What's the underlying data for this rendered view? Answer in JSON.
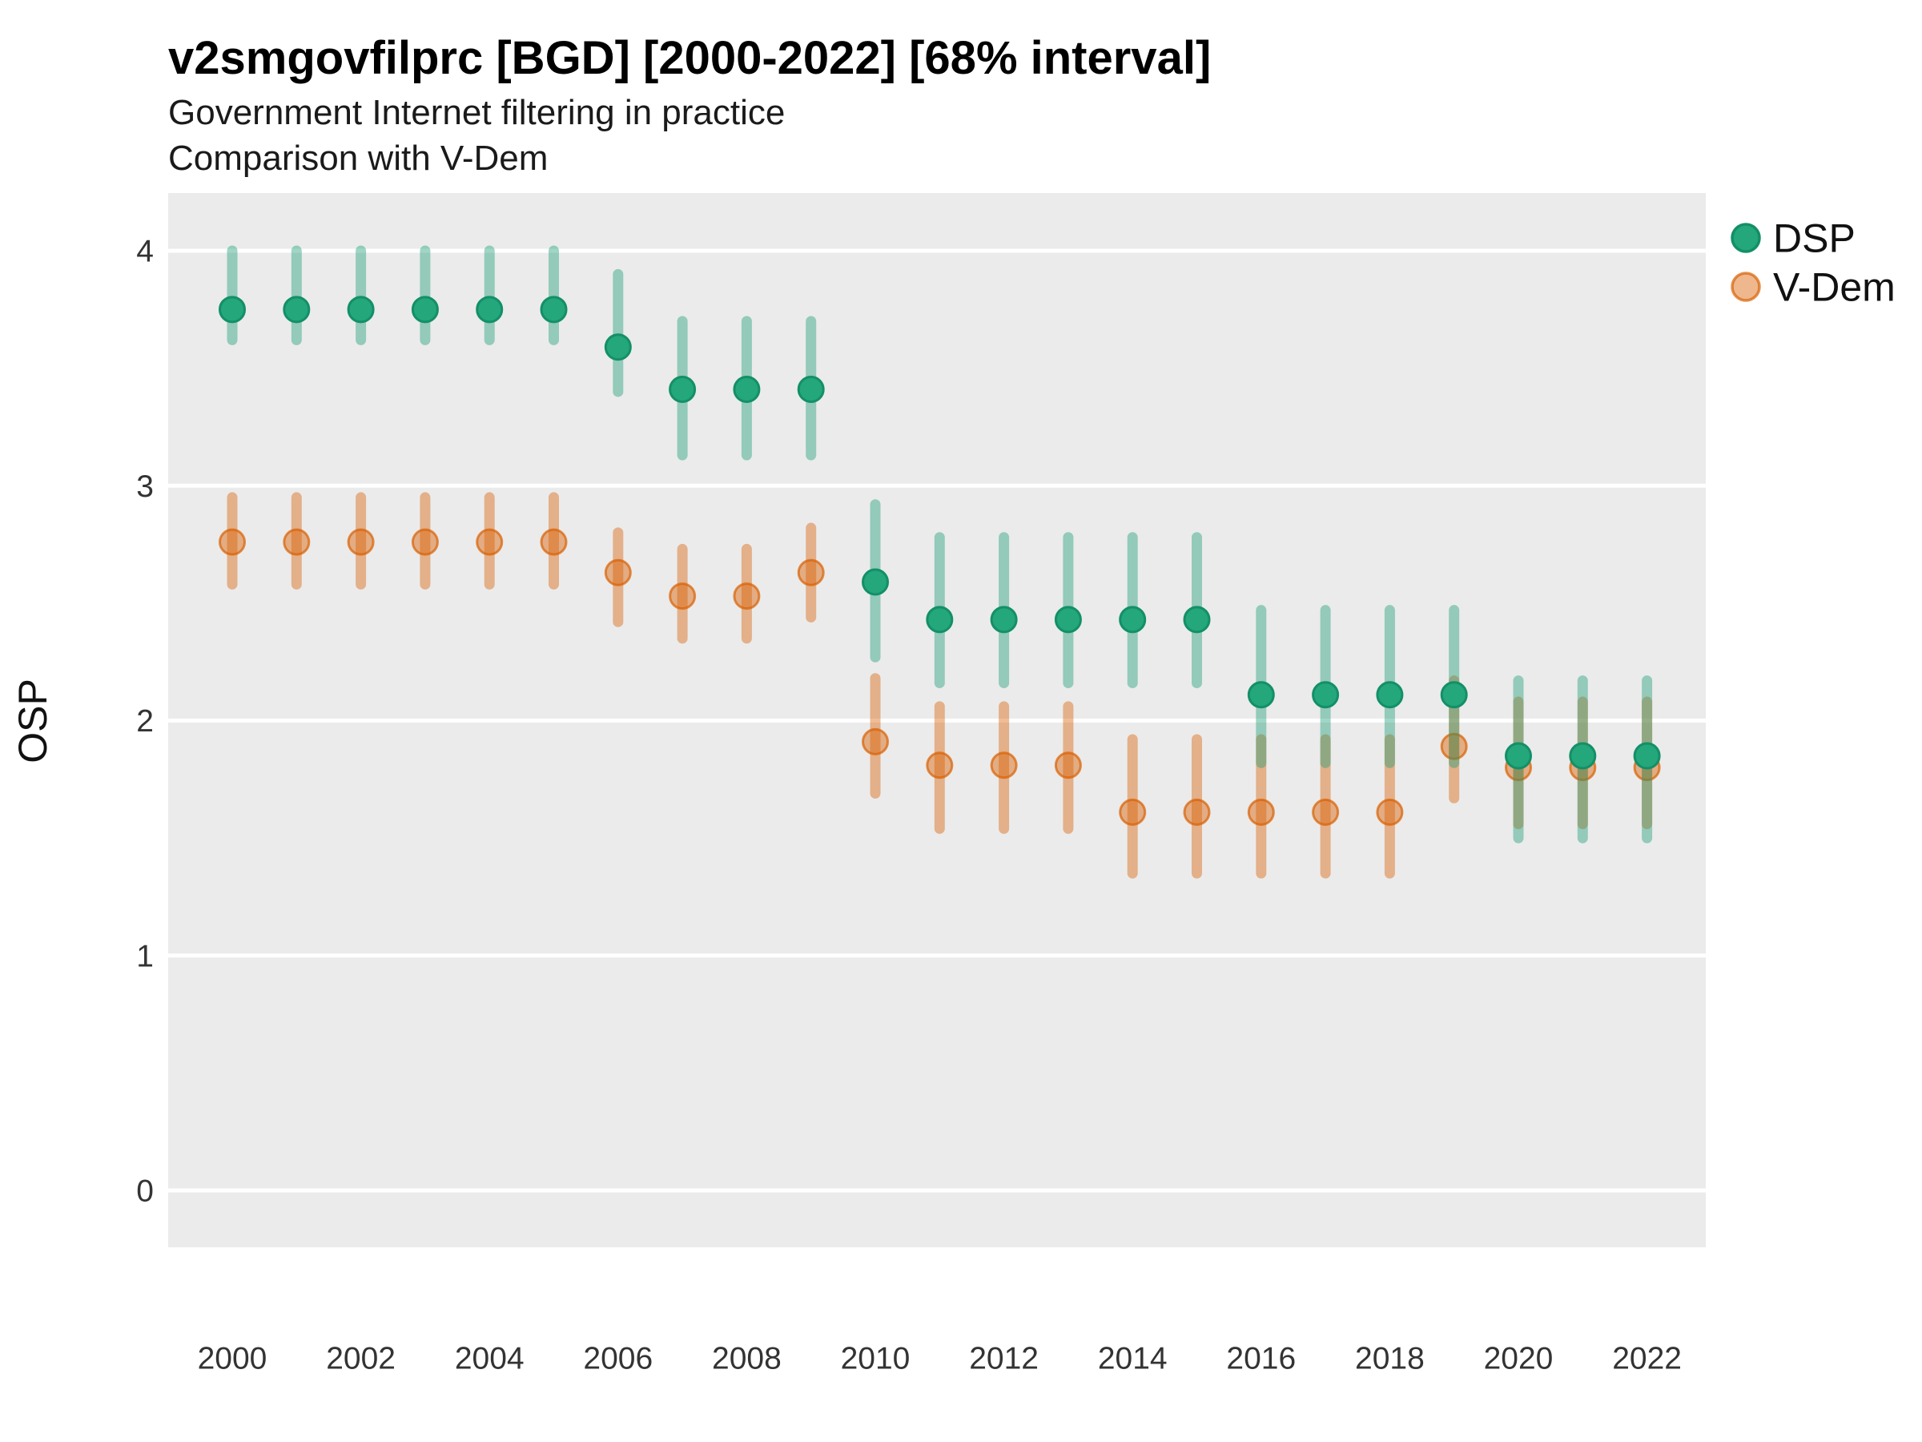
{
  "header": {
    "title": "v2smgovfilprc [BGD] [2000-2022] [68% interval]",
    "subtitle1": "Government Internet filtering in practice",
    "subtitle2": "Comparison with V-Dem"
  },
  "axes": {
    "y_label": "OSP",
    "y_ticks": [
      4,
      3,
      2,
      1,
      0
    ],
    "x_ticks": [
      2000,
      2002,
      2004,
      2006,
      2008,
      2010,
      2012,
      2014,
      2016,
      2018,
      2020,
      2022
    ]
  },
  "legend": {
    "items": [
      "DSP",
      "V-Dem"
    ]
  },
  "colors": {
    "dsp": "#1B9E77",
    "dsp_point_fill": "#23A77B",
    "dsp_point_stroke": "#148F68",
    "vdem": "#D95F02",
    "panel_background": "#EBEBEB",
    "gridline": "#FFFFFF"
  },
  "chart_data": {
    "type": "scatter",
    "title": "v2smgovfilprc [BGD] [2000-2022] [68% interval]",
    "subtitle": "Government Internet filtering in practice — Comparison with V-Dem",
    "xlabel": "",
    "ylabel": "OSP",
    "interval": "68%",
    "ylim": [
      -0.24,
      4.25
    ],
    "xlim": [
      1999,
      2023
    ],
    "grid": "horizontal-major-only",
    "legend_position": "right-top",
    "x": [
      2000,
      2001,
      2002,
      2003,
      2004,
      2005,
      2006,
      2007,
      2008,
      2009,
      2010,
      2011,
      2012,
      2013,
      2014,
      2015,
      2016,
      2017,
      2018,
      2019,
      2020,
      2021,
      2022
    ],
    "series": [
      {
        "name": "DSP",
        "color": "#1B9E77",
        "values": [
          3.75,
          3.75,
          3.75,
          3.75,
          3.75,
          3.75,
          3.59,
          3.41,
          3.41,
          3.41,
          2.59,
          2.43,
          2.43,
          2.43,
          2.43,
          2.43,
          2.11,
          2.11,
          2.11,
          2.11,
          1.85,
          1.85,
          1.85
        ],
        "lo": [
          3.62,
          3.62,
          3.62,
          3.62,
          3.62,
          3.62,
          3.4,
          3.13,
          3.13,
          3.13,
          2.27,
          2.16,
          2.16,
          2.16,
          2.16,
          2.16,
          1.82,
          1.82,
          1.82,
          1.82,
          1.5,
          1.5,
          1.5
        ],
        "hi": [
          4.0,
          4.0,
          4.0,
          4.0,
          4.0,
          4.0,
          3.9,
          3.7,
          3.7,
          3.7,
          2.92,
          2.78,
          2.78,
          2.78,
          2.78,
          2.78,
          2.47,
          2.47,
          2.47,
          2.47,
          2.17,
          2.17,
          2.17
        ]
      },
      {
        "name": "V-Dem",
        "color": "#D95F02",
        "values": [
          2.76,
          2.76,
          2.76,
          2.76,
          2.76,
          2.76,
          2.63,
          2.53,
          2.53,
          2.63,
          1.91,
          1.81,
          1.81,
          1.81,
          1.61,
          1.61,
          1.61,
          1.61,
          1.61,
          1.89,
          1.8,
          1.8,
          1.8
        ],
        "lo": [
          2.58,
          2.58,
          2.58,
          2.58,
          2.58,
          2.58,
          2.42,
          2.35,
          2.35,
          2.44,
          1.69,
          1.54,
          1.54,
          1.54,
          1.35,
          1.35,
          1.35,
          1.35,
          1.35,
          1.67,
          1.56,
          1.56,
          1.56
        ],
        "hi": [
          2.95,
          2.95,
          2.95,
          2.95,
          2.95,
          2.95,
          2.8,
          2.73,
          2.73,
          2.82,
          2.18,
          2.06,
          2.06,
          2.06,
          1.92,
          1.92,
          1.92,
          1.92,
          1.92,
          2.17,
          2.08,
          2.08,
          2.08
        ]
      }
    ]
  }
}
